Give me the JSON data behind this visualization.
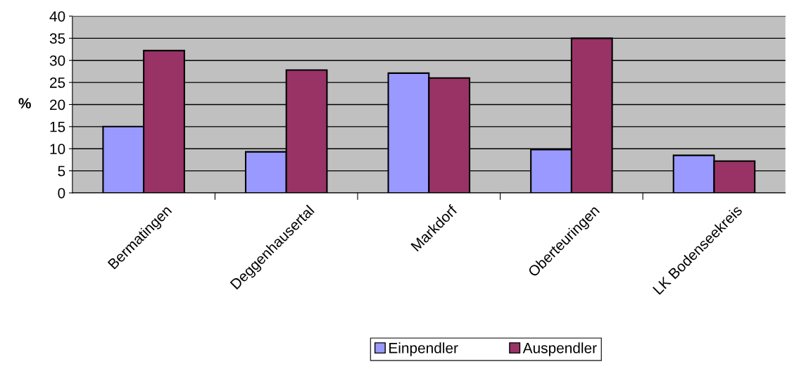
{
  "chart_data": {
    "type": "bar",
    "ylabel": "%",
    "categories": [
      "Bermatingen",
      "Deggenhausertal",
      "Markdorf",
      "Oberteuringen",
      "LK Bodenseekreis"
    ],
    "series": [
      {
        "name": "Einpendler",
        "color": "#9999ff",
        "values": [
          15.0,
          9.3,
          27.1,
          9.8,
          8.5
        ]
      },
      {
        "name": "Auspendler",
        "color": "#993366",
        "values": [
          32.2,
          27.8,
          26.0,
          35.0,
          7.2
        ]
      }
    ],
    "ylim": [
      0,
      40
    ],
    "yticks": [
      0,
      5,
      10,
      15,
      20,
      25,
      30,
      35,
      40
    ],
    "grid": "y",
    "legend": "bottom"
  }
}
